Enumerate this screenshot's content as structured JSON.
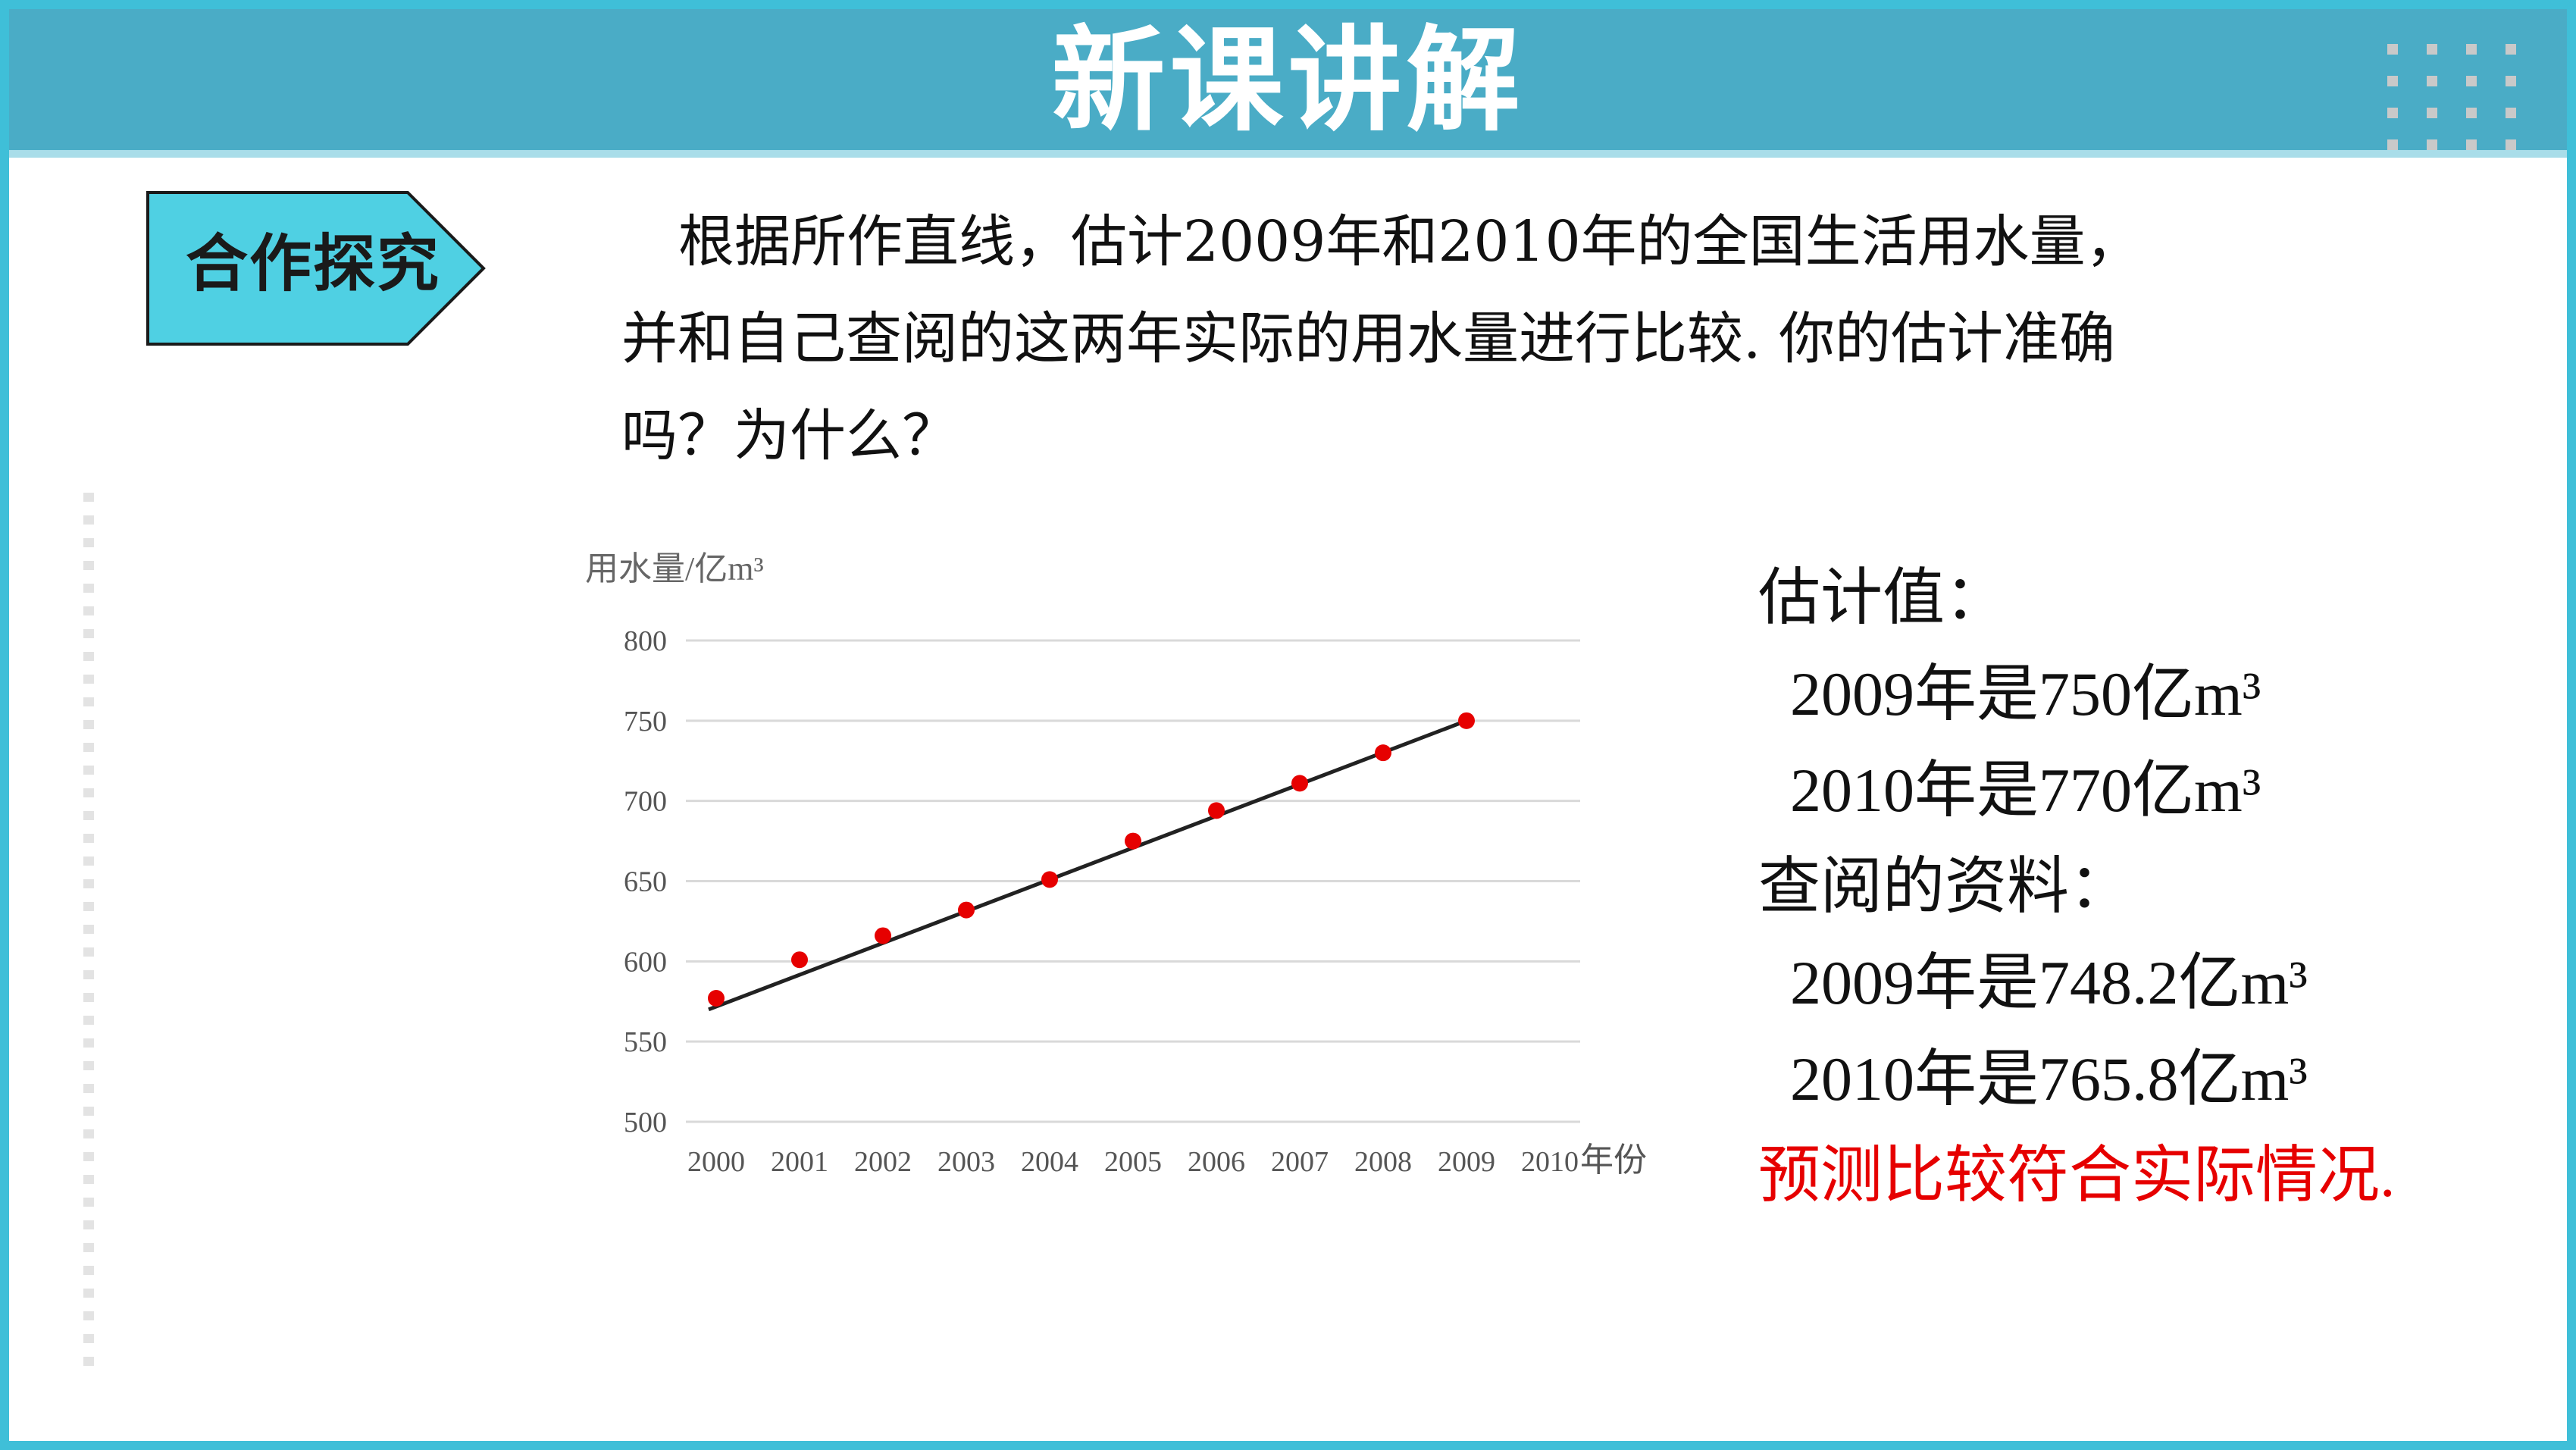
{
  "header": {
    "title": "新课讲解"
  },
  "badge": {
    "label": "合作探究"
  },
  "question": {
    "lines": [
      "根据所作直线，估计2009年和2010年的全国生活用水量，",
      "并和自己查阅的这两年实际的用水量进行比较. 你的估计准确",
      "吗？为什么？"
    ]
  },
  "answers": {
    "estimate_heading": "估计值：",
    "estimate_2009": "2009年是750亿m³",
    "estimate_2010": "2010年是770亿m³",
    "lookup_heading": "查阅的资料：",
    "actual_2009": "2009年是748.2亿m³",
    "actual_2010": "2010年是765.8亿m³",
    "conclusion": "预测比较符合实际情况."
  },
  "colors": {
    "header_bg": "#4aacc6",
    "frame": "#3fbfd8",
    "badge_fill": "#4fd0e3",
    "points": "#e60000",
    "conclusion": "#e60000"
  },
  "chart_data": {
    "type": "scatter",
    "ylabel": "用水量/亿m³",
    "xlabel": "年份",
    "x_ticks": [
      "2000",
      "2001",
      "2002",
      "2003",
      "2004",
      "2005",
      "2006",
      "2007",
      "2008",
      "2009",
      "2010"
    ],
    "y_ticks": [
      "800",
      "750",
      "700",
      "650",
      "600",
      "550",
      "500"
    ],
    "ylim": [
      500,
      800
    ],
    "grid": true,
    "points": [
      {
        "x": 2000,
        "y": 577
      },
      {
        "x": 2001,
        "y": 601
      },
      {
        "x": 2002,
        "y": 616
      },
      {
        "x": 2003,
        "y": 632
      },
      {
        "x": 2004,
        "y": 651
      },
      {
        "x": 2005,
        "y": 675
      },
      {
        "x": 2006,
        "y": 694
      },
      {
        "x": 2007,
        "y": 711
      },
      {
        "x": 2008,
        "y": 730
      },
      {
        "x": 2009,
        "y": 750
      }
    ],
    "trend_line": [
      {
        "x": 2000,
        "y": 570
      },
      {
        "x": 2009,
        "y": 750
      }
    ]
  }
}
